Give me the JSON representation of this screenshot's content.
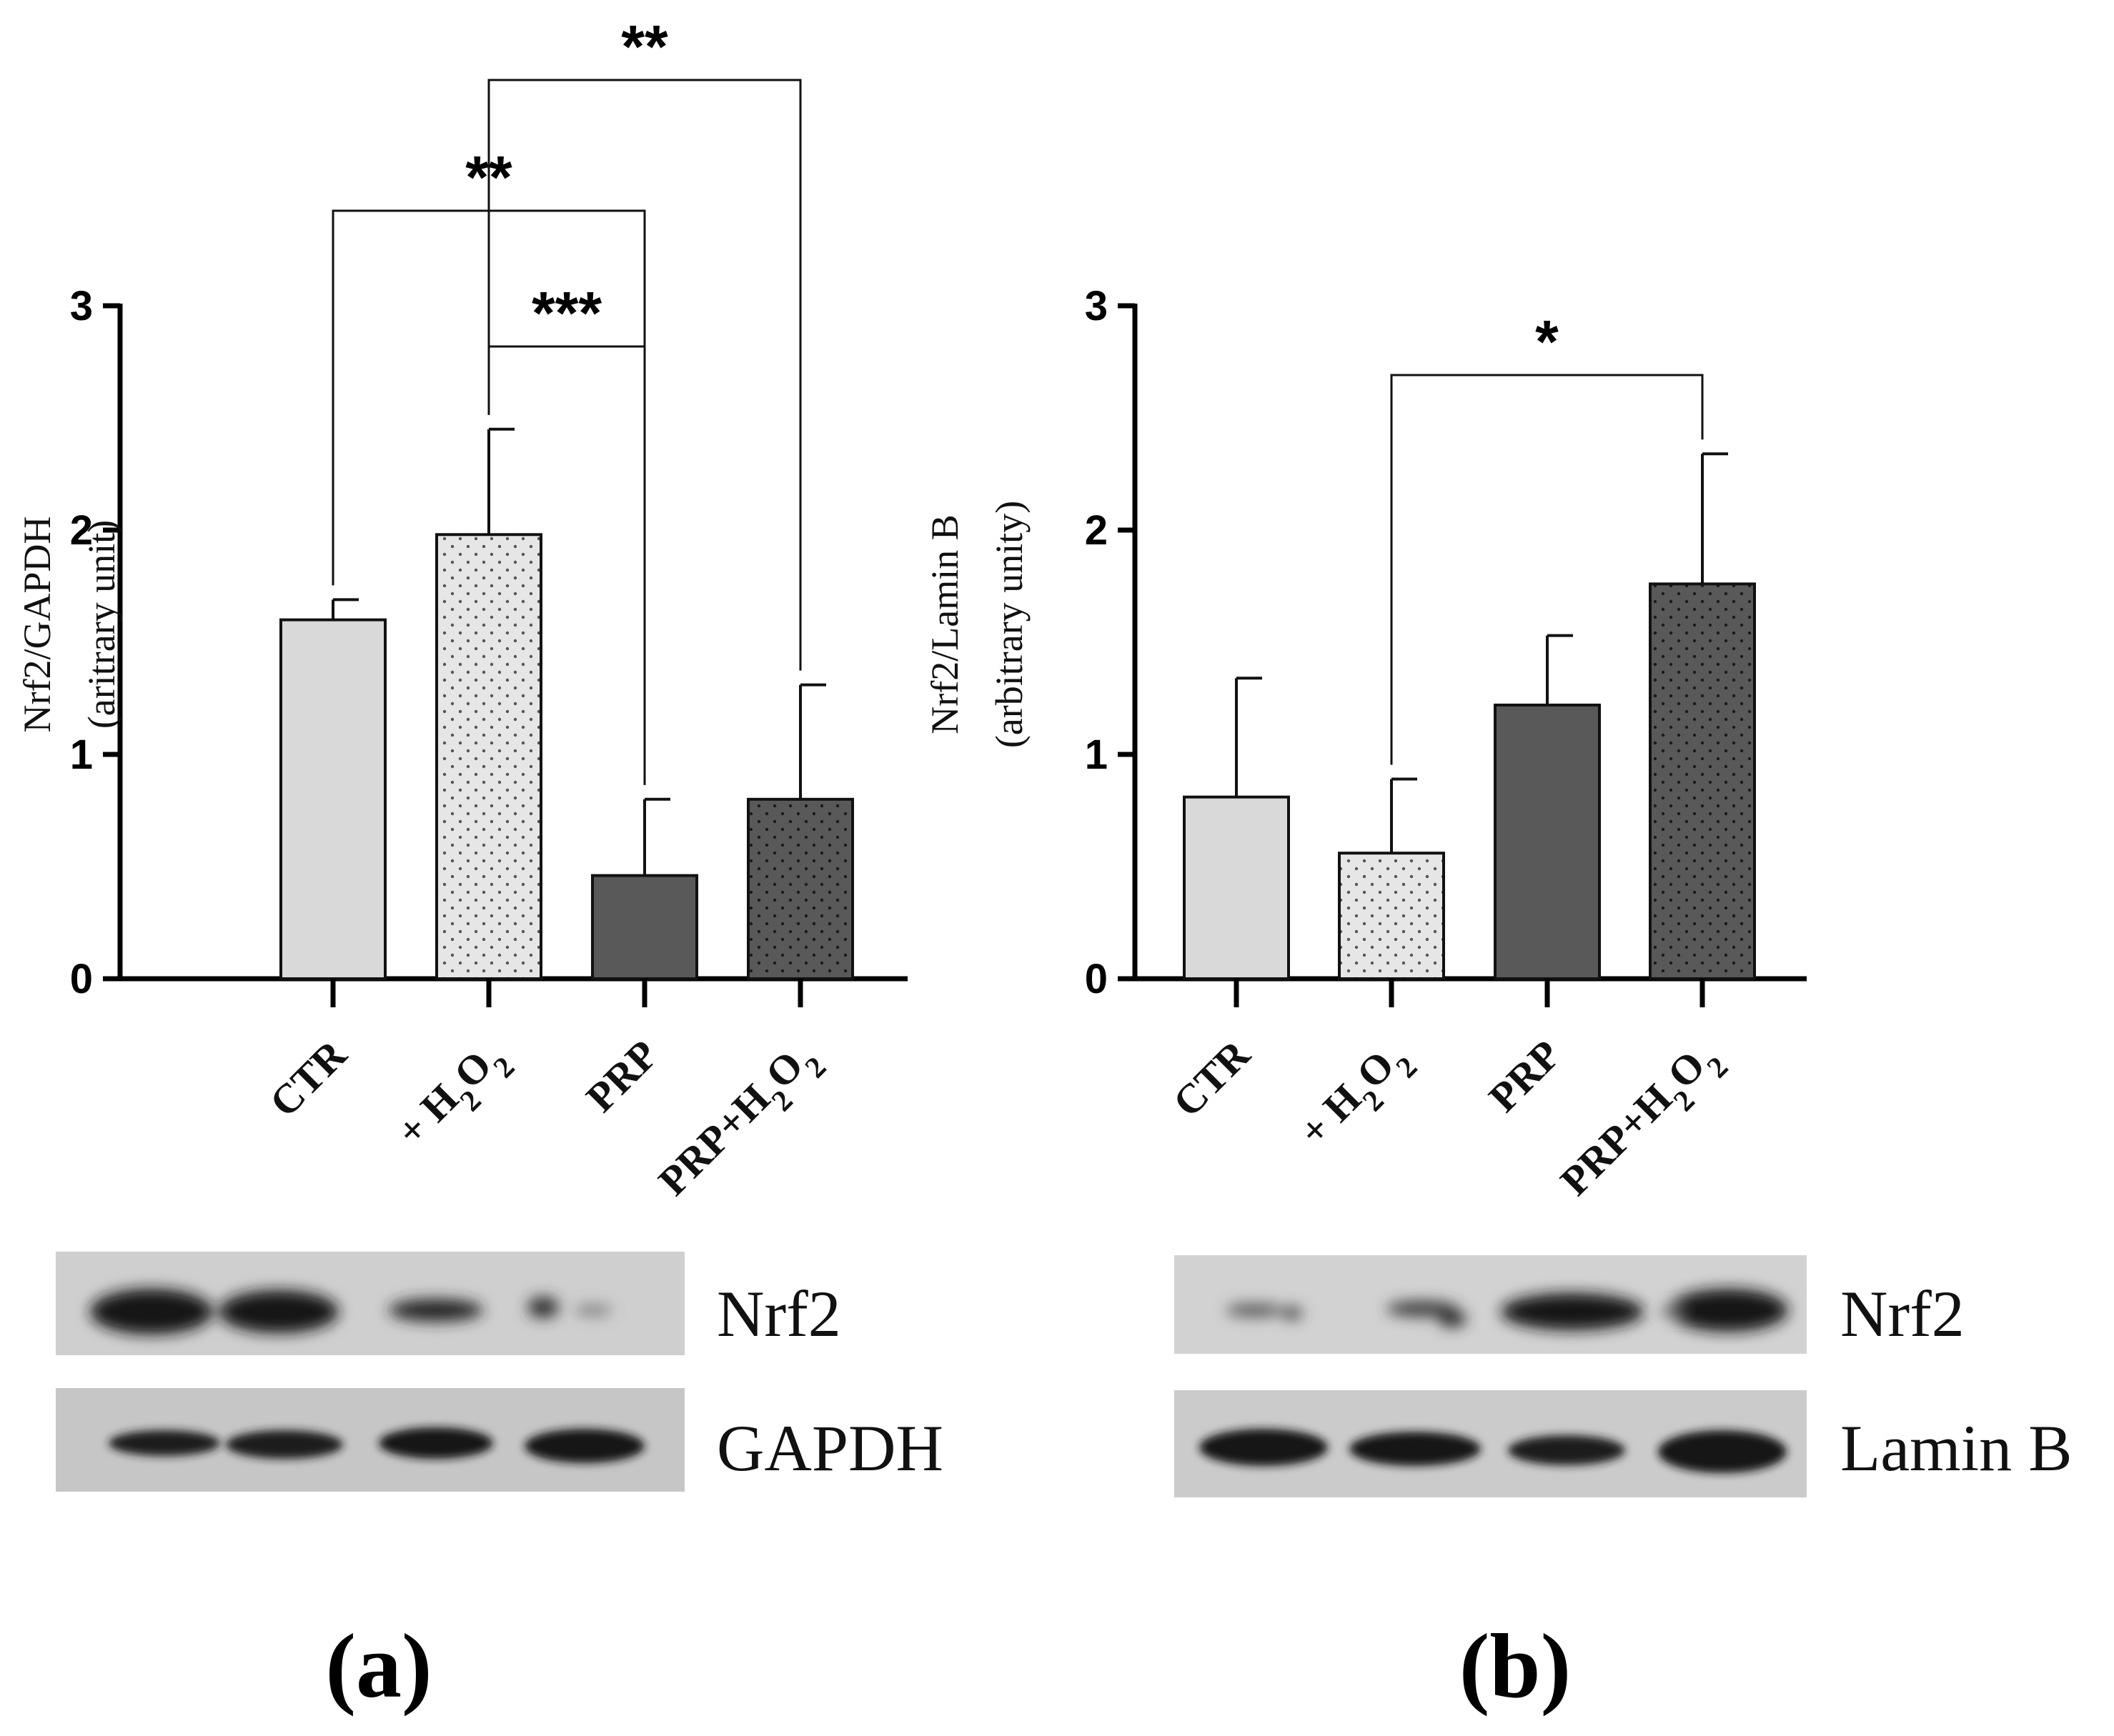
{
  "chart_data": [
    {
      "type": "bar",
      "panel_label": "(a)",
      "ylabel": "Nrf2/GAPDH",
      "ylabel_sub": "(aritrary unit)",
      "ylim": [
        0,
        3
      ],
      "yticks": [
        "0",
        "1",
        "2",
        "3"
      ],
      "categories": [
        "CTR",
        "+ H2O2",
        "PRP",
        "PRP+H2O2"
      ],
      "values": [
        1.6,
        1.98,
        0.46,
        0.8
      ],
      "errors": [
        0.09,
        0.47,
        0.34,
        0.51
      ],
      "fills": [
        "#d9d9d9",
        "#e6e6e6",
        "#595959",
        "#595959"
      ],
      "dotted": [
        false,
        true,
        false,
        true
      ],
      "significance": [
        {
          "from": 1,
          "to": 2,
          "label": "***"
        },
        {
          "from": 0,
          "to": 2,
          "label": "**"
        },
        {
          "from": 1,
          "to": 3,
          "label": "**"
        }
      ],
      "blot": {
        "bands": [
          "Nrf2",
          "GAPDH"
        ]
      }
    },
    {
      "type": "bar",
      "panel_label": "(b)",
      "ylabel": "Nrf2/Lamin B",
      "ylabel_sub": "(arbitrary unity)",
      "ylim": [
        0,
        3
      ],
      "yticks": [
        "0",
        "1",
        "2",
        "3"
      ],
      "categories": [
        "CTR",
        "+ H2O2",
        "PRP",
        "PRP+H2O2"
      ],
      "values": [
        0.81,
        0.56,
        1.22,
        1.76
      ],
      "errors": [
        0.53,
        0.33,
        0.31,
        0.58
      ],
      "fills": [
        "#d9d9d9",
        "#e6e6e6",
        "#595959",
        "#595959"
      ],
      "dotted": [
        false,
        true,
        false,
        true
      ],
      "significance": [
        {
          "from": 1,
          "to": 3,
          "label": "*"
        }
      ],
      "blot": {
        "bands": [
          "Nrf2",
          "Lamin B"
        ]
      }
    }
  ]
}
